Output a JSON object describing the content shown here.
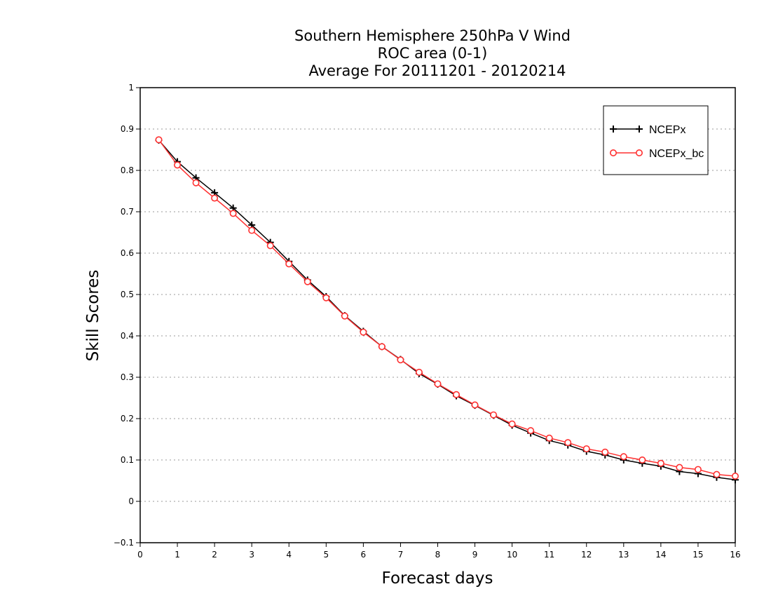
{
  "chart_data": {
    "type": "line",
    "title": [
      "Southern Hemisphere 250hPa V Wind",
      "ROC area (0-1)",
      "Average For 20111201 - 20120214"
    ],
    "xlabel": "Forecast days",
    "ylabel": "Skill Scores",
    "xlim": [
      0,
      16
    ],
    "ylim": [
      -0.1,
      1
    ],
    "xticks": [
      "0",
      "1",
      "2",
      "3",
      "4",
      "5",
      "6",
      "7",
      "8",
      "9",
      "10",
      "11",
      "12",
      "13",
      "14",
      "15",
      "16"
    ],
    "yticks": [
      "−0.1",
      "0",
      "0.1",
      "0.2",
      "0.3",
      "0.4",
      "0.5",
      "0.6",
      "0.7",
      "0.8",
      "0.9",
      "1"
    ],
    "grid": "horizontal dotted",
    "legend_position": "top-right",
    "x": [
      0.5,
      1,
      1.5,
      2,
      2.5,
      3,
      3.5,
      4,
      4.5,
      5,
      5.5,
      6,
      6.5,
      7,
      7.5,
      8,
      8.5,
      9,
      9.5,
      10,
      10.5,
      11,
      11.5,
      12,
      12.5,
      13,
      13.5,
      14,
      14.5,
      15,
      15.5,
      16
    ],
    "series": [
      {
        "name": "NCEPx",
        "color": "#000000",
        "marker": "plus",
        "values": [
          0.873,
          0.821,
          0.782,
          0.746,
          0.709,
          0.668,
          0.626,
          0.58,
          0.535,
          0.495,
          0.449,
          0.411,
          0.374,
          0.343,
          0.309,
          0.283,
          0.255,
          0.232,
          0.208,
          0.184,
          0.165,
          0.147,
          0.136,
          0.121,
          0.112,
          0.1,
          0.092,
          0.085,
          0.072,
          0.067,
          0.058,
          0.052
        ]
      },
      {
        "name": "NCEPx_bc",
        "color": "#ff3030",
        "marker": "circle",
        "values": [
          0.874,
          0.813,
          0.77,
          0.733,
          0.696,
          0.655,
          0.618,
          0.574,
          0.531,
          0.492,
          0.448,
          0.409,
          0.374,
          0.342,
          0.312,
          0.284,
          0.258,
          0.233,
          0.209,
          0.187,
          0.171,
          0.153,
          0.142,
          0.127,
          0.119,
          0.108,
          0.1,
          0.092,
          0.082,
          0.077,
          0.065,
          0.061
        ]
      }
    ]
  }
}
